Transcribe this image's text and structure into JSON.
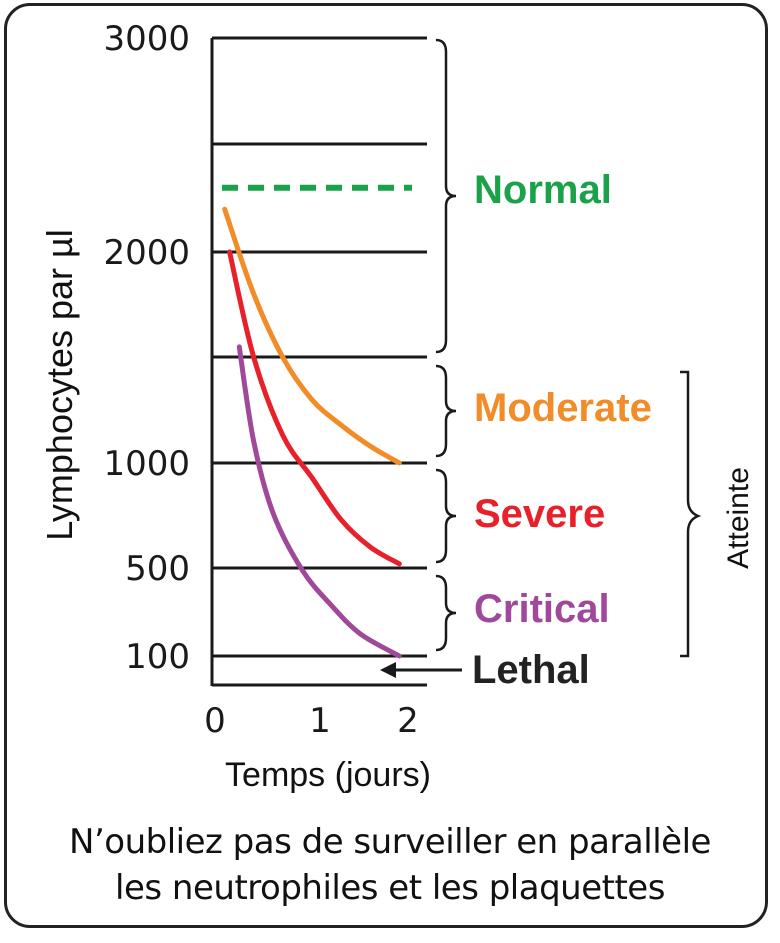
{
  "chart_data": {
    "type": "line",
    "title": "",
    "xlabel": "Temps (jours)",
    "ylabel": "Lymphocytes par µl",
    "x_ticks": [
      "0",
      "1",
      "2"
    ],
    "y_ticks": [
      "3000",
      "2000",
      "1000",
      "500",
      "100"
    ],
    "xlim": [
      0,
      2
    ],
    "series": [
      {
        "name": "Moderate",
        "color": "#f28c28",
        "x": [
          0.1,
          0.4,
          0.7,
          1.0,
          1.3,
          1.6,
          1.9
        ],
        "y": [
          2200,
          1800,
          1500,
          1300,
          1180,
          1080,
          1000
        ]
      },
      {
        "name": "Severe",
        "color": "#e8202a",
        "x": [
          0.15,
          0.4,
          0.7,
          1.0,
          1.3,
          1.6,
          1.9
        ],
        "y": [
          2000,
          1500,
          1130,
          930,
          730,
          600,
          520
        ]
      },
      {
        "name": "Critical",
        "color": "#a0489a",
        "x": [
          0.25,
          0.4,
          0.6,
          0.9,
          1.2,
          1.5,
          1.9
        ],
        "y": [
          1550,
          1100,
          760,
          490,
          330,
          200,
          100
        ]
      }
    ],
    "reference": {
      "name": "Normal",
      "style": "dashed",
      "color": "#1aa24a",
      "y": 2300
    },
    "zones": [
      {
        "label": "Normal",
        "color": "#1aa24a"
      },
      {
        "label": "Moderate",
        "color": "#f28c28"
      },
      {
        "label": "Severe",
        "color": "#e8202a"
      },
      {
        "label": "Critical",
        "color": "#a0489a"
      },
      {
        "label": "Lethal",
        "color": "#222222"
      }
    ],
    "group_label": "Atteinte"
  },
  "caption": {
    "line1": "N’oubliez pas de surveiller en parallèle",
    "line2": "les neutrophiles et les plaquettes"
  }
}
